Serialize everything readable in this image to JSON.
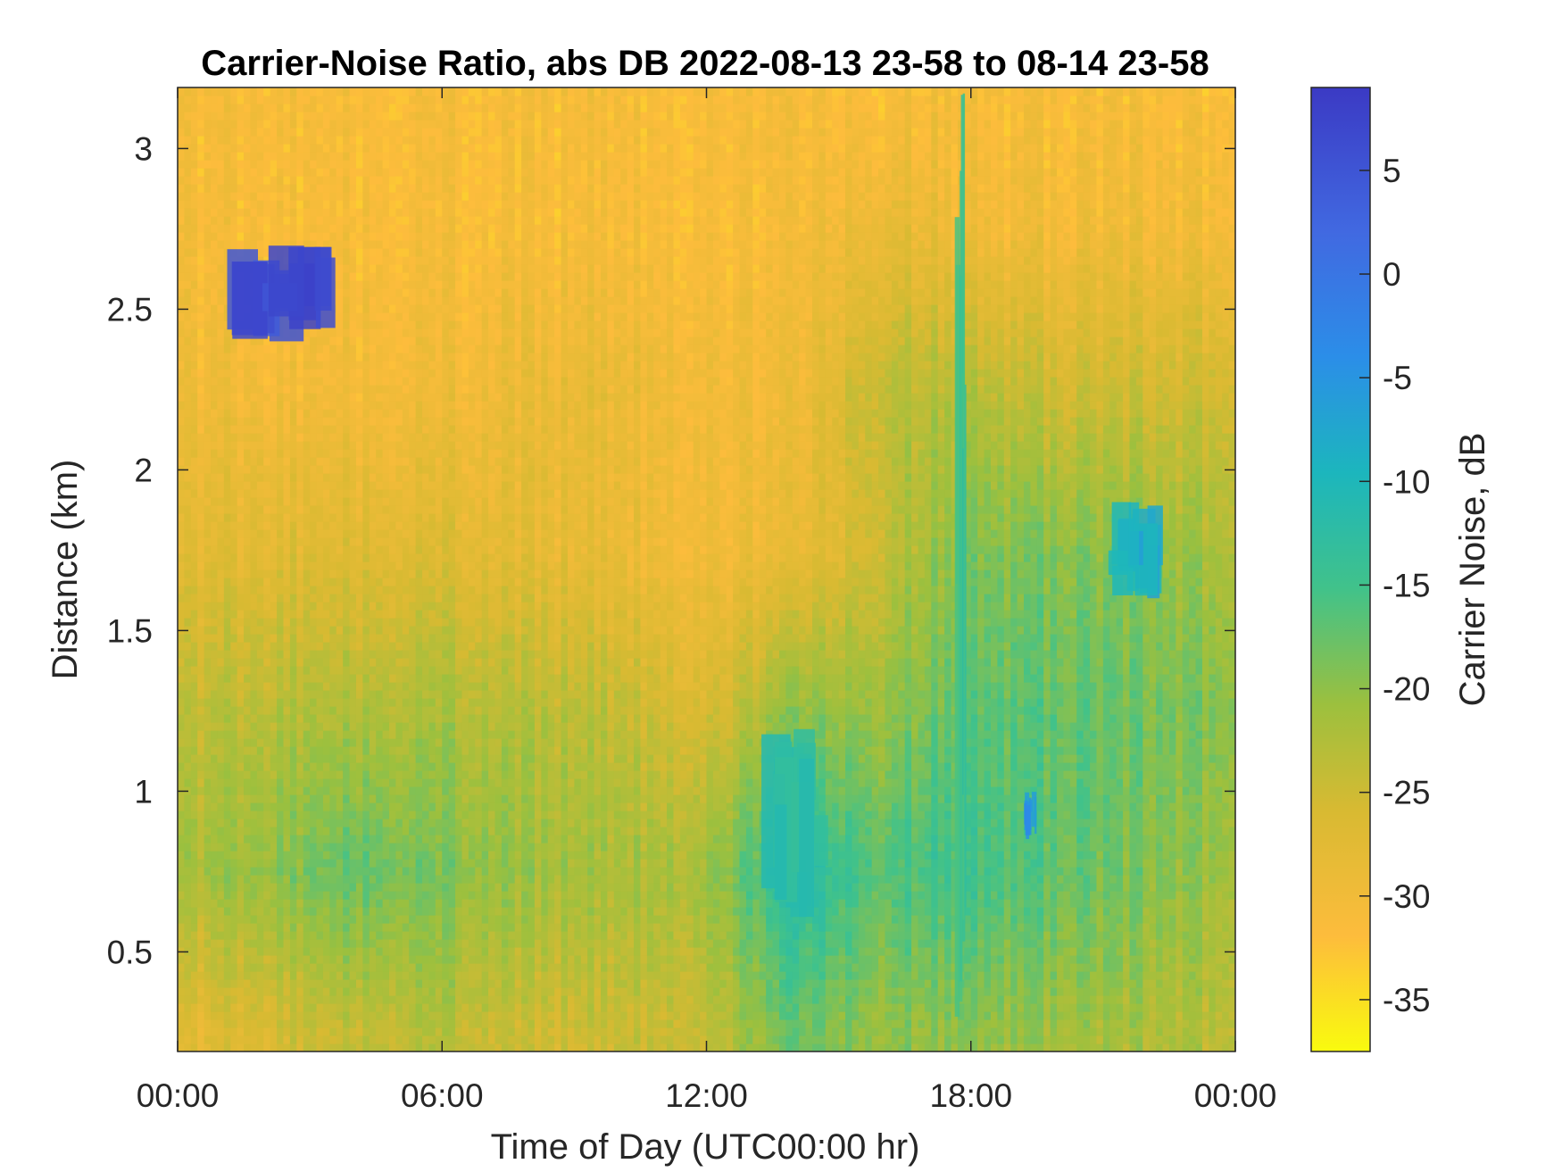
{
  "chart_data": {
    "type": "heatmap",
    "title": "Carrier-Noise Ratio, abs DB 2022-08-13 23-58 to 08-14 23-58",
    "xlabel": "Time of Day (UTC00:00 hr)",
    "ylabel": "Distance (km)",
    "colorbar_label": "Carrier Noise, dB",
    "colormap": "parula (reversed: yellow = low, dark blue = high)",
    "colormap_colors": [
      "#f9fb0e",
      "#fdbc3c",
      "#d8ba32",
      "#9cc03e",
      "#41c28a",
      "#1cb6bd",
      "#2b8ee8",
      "#4169e1",
      "#3b3ac4"
    ],
    "x_ticks": [
      {
        "value": 0,
        "label": "00:00"
      },
      {
        "value": 6,
        "label": "06:00"
      },
      {
        "value": 12,
        "label": "12:00"
      },
      {
        "value": 18,
        "label": "18:00"
      },
      {
        "value": 24,
        "label": "00:00"
      }
    ],
    "y_ticks": [
      {
        "value": 0.5,
        "label": "0.5"
      },
      {
        "value": 1,
        "label": "1"
      },
      {
        "value": 1.5,
        "label": "1.5"
      },
      {
        "value": 2,
        "label": "2"
      },
      {
        "value": 2.5,
        "label": "2.5"
      },
      {
        "value": 3,
        "label": "3"
      }
    ],
    "colorbar_ticks": [
      {
        "value": 5,
        "label": "5"
      },
      {
        "value": 0,
        "label": "0"
      },
      {
        "value": -5,
        "label": "-5"
      },
      {
        "value": -10,
        "label": "-10"
      },
      {
        "value": -15,
        "label": "-15"
      },
      {
        "value": -20,
        "label": "-20"
      },
      {
        "value": -25,
        "label": "-25"
      },
      {
        "value": -30,
        "label": "-30"
      },
      {
        "value": -35,
        "label": "-35"
      }
    ],
    "xlim": [
      0,
      24
    ],
    "ylim": [
      0.19,
      3.19
    ],
    "clim": [
      -37.5,
      9
    ],
    "hours": [
      0,
      2,
      4,
      6,
      8,
      10,
      12,
      14,
      16,
      18,
      20,
      22,
      24
    ],
    "distances_km": [
      0.25,
      0.75,
      1.25,
      1.75,
      2.25,
      2.75,
      3.15
    ],
    "cnr_db_grid": [
      [
        -28,
        -22,
        -24,
        -28,
        -30,
        -31,
        -31
      ],
      [
        -26,
        -20,
        -23,
        -27,
        -30,
        -31,
        -31
      ],
      [
        -24,
        -17,
        -22,
        -27,
        -30,
        -31,
        -31
      ],
      [
        -23,
        -19,
        -22,
        -27,
        -30,
        -31,
        -31
      ],
      [
        -25,
        -21,
        -23,
        -28,
        -29,
        -31,
        -31
      ],
      [
        -25,
        -22,
        -24,
        -29,
        -29,
        -31,
        -31
      ],
      [
        -24,
        -21,
        -26,
        -30,
        -30,
        -31,
        -31
      ],
      [
        -18,
        -12,
        -20,
        -29,
        -30,
        -31,
        -31
      ],
      [
        -20,
        -16,
        -20,
        -24,
        -23,
        -28,
        -31
      ],
      [
        -20,
        -15,
        -17,
        -19,
        -23,
        -30,
        -31
      ],
      [
        -21,
        -17,
        -17,
        -19,
        -25,
        -30,
        -31
      ],
      [
        -22,
        -19,
        -18,
        -20,
        -25,
        -30,
        -31
      ],
      [
        -23,
        -21,
        -19,
        -22,
        -25,
        -30,
        -31
      ]
    ],
    "features": [
      {
        "desc": "strong return patches",
        "t_range": [
          1.1,
          3.6
        ],
        "d_range": [
          2.4,
          2.7
        ],
        "cnr_db": 6
      },
      {
        "desc": "blue patch",
        "t_range": [
          13.2,
          14.9
        ],
        "d_range": [
          0.6,
          1.2
        ],
        "cnr_db": -12
      },
      {
        "desc": "vertical stripe",
        "t_range": [
          17.6,
          17.9
        ],
        "d_range": [
          0.19,
          3.19
        ],
        "cnr_db": -14
      },
      {
        "desc": "patch",
        "t_range": [
          21.0,
          22.5
        ],
        "d_range": [
          1.6,
          1.9
        ],
        "cnr_db": -8
      },
      {
        "desc": "patch",
        "t_range": [
          19.2,
          19.5
        ],
        "d_range": [
          0.85,
          1.0
        ],
        "cnr_db": -5
      }
    ]
  }
}
